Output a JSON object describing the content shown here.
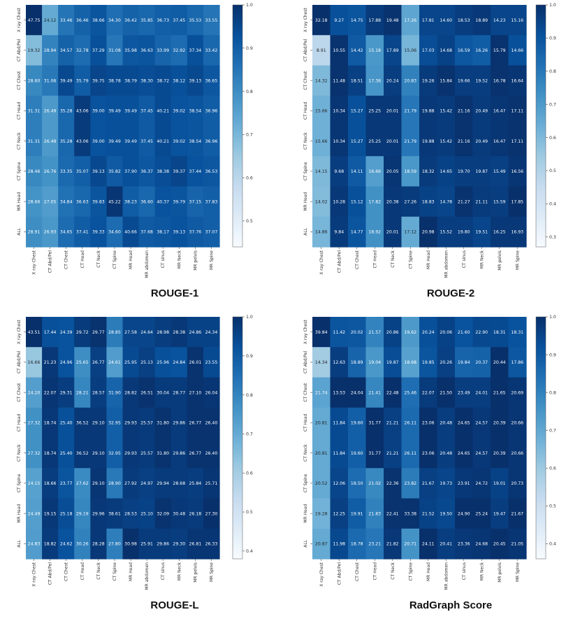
{
  "rows": [
    "X ray Chest",
    "CT Abd/Pel",
    "CT Chest",
    "CT Head",
    "CT Neck",
    "CT Spine",
    "MR Head",
    "ALL"
  ],
  "cols": [
    "X ray Chest",
    "CT Abd/Pel",
    "CT Chest",
    "CT Head",
    "CT Neck",
    "CT Spine",
    "MR Head",
    "MR abdomen",
    "CT sinus",
    "MR Neck",
    "MR pelvis",
    "MR Spine"
  ],
  "colormap": {
    "name": "Blues",
    "stops": [
      "#f7fbff",
      "#deebf7",
      "#c6dbef",
      "#9ecae1",
      "#6baed6",
      "#4292c6",
      "#2171b5",
      "#08519c",
      "#08306b"
    ]
  },
  "chart_data": [
    {
      "type": "heatmap",
      "title": "ROUGE-1",
      "colorbar": {
        "ticks": [
          1.0,
          0.9,
          0.8,
          0.7,
          0.6,
          0.5
        ],
        "range": [
          0.44,
          1.0
        ]
      },
      "values": [
        [
          47.75,
          24.12,
          33.46,
          36.46,
          38.66,
          34.3,
          36.42,
          35.85,
          36.73,
          37.45,
          35.53,
          33.55
        ],
        [
          19.32,
          28.94,
          34.57,
          32.78,
          37.29,
          31.08,
          35.98,
          36.63,
          33.99,
          32.92,
          37.34,
          33.42
        ],
        [
          28.6,
          31.06,
          39.49,
          35.79,
          39.75,
          38.78,
          38.79,
          38.3,
          38.72,
          38.12,
          39.13,
          36.65
        ],
        [
          31.31,
          26.49,
          35.28,
          43.06,
          39.0,
          39.49,
          39.49,
          37.45,
          40.21,
          39.02,
          38.54,
          36.96
        ],
        [
          31.31,
          26.49,
          35.28,
          43.06,
          39.0,
          39.49,
          39.49,
          37.45,
          40.21,
          39.02,
          38.54,
          36.96
        ],
        [
          28.46,
          26.76,
          33.35,
          35.07,
          39.13,
          35.82,
          37.9,
          36.37,
          38.38,
          39.37,
          37.44,
          36.53
        ],
        [
          28.66,
          27.05,
          34.84,
          36.63,
          39.83,
          45.22,
          38.23,
          36.6,
          40.37,
          39.79,
          37.15,
          37.83
        ],
        [
          28.91,
          26.93,
          34.65,
          37.41,
          39.33,
          34.6,
          40.66,
          37.68,
          38.17,
          39.13,
          37.76,
          37.07
        ]
      ],
      "fractions": [
        [
          1.0,
          0.52,
          0.74,
          0.81,
          0.86,
          0.76,
          0.81,
          0.79,
          0.82,
          0.83,
          0.79,
          0.74
        ],
        [
          0.44,
          0.68,
          0.81,
          0.77,
          0.88,
          0.73,
          0.85,
          0.86,
          0.8,
          0.77,
          0.88,
          0.79
        ],
        [
          0.66,
          0.72,
          0.91,
          0.83,
          0.92,
          0.9,
          0.9,
          0.89,
          0.9,
          0.88,
          0.91,
          0.85
        ],
        [
          0.7,
          0.59,
          0.79,
          0.96,
          0.87,
          0.88,
          0.88,
          0.84,
          0.9,
          0.87,
          0.86,
          0.83
        ],
        [
          0.7,
          0.59,
          0.79,
          0.96,
          0.87,
          0.88,
          0.88,
          0.84,
          0.9,
          0.87,
          0.86,
          0.83
        ],
        [
          0.66,
          0.62,
          0.78,
          0.82,
          0.91,
          0.84,
          0.88,
          0.85,
          0.89,
          0.92,
          0.87,
          0.85
        ],
        [
          0.62,
          0.58,
          0.75,
          0.79,
          0.86,
          0.98,
          0.83,
          0.79,
          0.87,
          0.86,
          0.8,
          0.82
        ],
        [
          0.64,
          0.6,
          0.77,
          0.83,
          0.87,
          0.77,
          0.9,
          0.84,
          0.85,
          0.87,
          0.84,
          0.82
        ]
      ]
    },
    {
      "type": "heatmap",
      "title": "ROUGE-2",
      "colorbar": {
        "ticks": [
          1.0,
          0.9,
          0.8,
          0.7,
          0.6,
          0.5,
          0.4,
          0.3
        ],
        "range": [
          0.27,
          1.0
        ]
      },
      "values": [
        [
          32.18,
          9.27,
          14.75,
          17.88,
          19.48,
          17.26,
          17.81,
          14.6,
          18.53,
          18.89,
          14.23,
          15.16
        ],
        [
          8.91,
          10.55,
          14.42,
          15.18,
          17.89,
          15.06,
          17.03,
          14.68,
          16.59,
          16.26,
          15.79,
          14.66
        ],
        [
          14.32,
          11.48,
          18.51,
          17.36,
          20.24,
          20.83,
          19.26,
          15.84,
          19.66,
          19.52,
          16.78,
          16.64
        ],
        [
          15.66,
          10.34,
          15.27,
          25.25,
          20.01,
          21.79,
          19.88,
          15.42,
          21.16,
          20.49,
          16.47,
          17.11
        ],
        [
          15.66,
          10.34,
          15.27,
          25.25,
          20.01,
          21.79,
          19.88,
          15.42,
          21.16,
          20.49,
          16.47,
          17.11
        ],
        [
          14.15,
          9.68,
          14.11,
          16.66,
          20.05,
          18.59,
          18.32,
          14.65,
          19.7,
          19.87,
          15.49,
          16.56
        ],
        [
          14.02,
          10.28,
          15.12,
          17.82,
          20.38,
          27.26,
          18.83,
          14.78,
          21.27,
          21.11,
          15.59,
          17.85
        ],
        [
          14.86,
          9.84,
          14.77,
          18.92,
          20.01,
          17.12,
          20.98,
          15.52,
          19.8,
          19.51,
          16.25,
          16.93
        ]
      ],
      "fractions": [
        [
          1.0,
          0.88,
          0.86,
          0.96,
          0.99,
          0.54,
          0.92,
          0.92,
          0.95,
          0.97,
          0.92,
          0.92
        ],
        [
          0.28,
          0.99,
          0.84,
          0.6,
          0.92,
          0.47,
          0.89,
          0.93,
          0.85,
          0.83,
          0.99,
          0.88
        ],
        [
          0.45,
          0.99,
          0.94,
          0.61,
          0.95,
          0.69,
          0.96,
          0.99,
          0.95,
          0.95,
          0.99,
          0.98
        ],
        [
          0.49,
          0.98,
          0.88,
          0.97,
          0.97,
          0.73,
          0.97,
          0.96,
          0.99,
          0.96,
          0.98,
          0.99
        ],
        [
          0.49,
          0.98,
          0.88,
          0.97,
          0.97,
          0.73,
          0.97,
          0.96,
          0.99,
          0.96,
          0.98,
          0.99
        ],
        [
          0.45,
          0.95,
          0.84,
          0.57,
          0.98,
          0.6,
          0.96,
          0.93,
          0.95,
          0.95,
          0.94,
          0.98
        ],
        [
          0.44,
          0.97,
          0.88,
          0.63,
          0.97,
          0.96,
          0.93,
          0.92,
          0.99,
          0.96,
          0.95,
          1.0
        ],
        [
          0.47,
          0.96,
          0.86,
          0.63,
          0.97,
          0.52,
          1.0,
          0.95,
          0.95,
          0.92,
          0.97,
          0.97
        ]
      ]
    },
    {
      "type": "heatmap",
      "title": "ROUGE-L",
      "colorbar": {
        "ticks": [
          1.0,
          0.9,
          0.8,
          0.7,
          0.6,
          0.5,
          0.4
        ],
        "range": [
          0.38,
          1.0
        ]
      },
      "values": [
        [
          43.51,
          17.44,
          24.39,
          29.72,
          29.77,
          28.85,
          27.58,
          24.64,
          28.98,
          28.38,
          24.86,
          24.34
        ],
        [
          16.66,
          21.23,
          24.96,
          25.65,
          26.77,
          24.61,
          25.95,
          25.13,
          25.96,
          24.84,
          26.01,
          23.55
        ],
        [
          24.2,
          22.07,
          29.31,
          28.21,
          28.57,
          31.9,
          28.82,
          26.51,
          30.04,
          28.77,
          27.1,
          26.04
        ],
        [
          27.32,
          18.74,
          25.4,
          36.52,
          29.1,
          32.95,
          29.93,
          25.57,
          31.8,
          29.86,
          26.77,
          26.4
        ],
        [
          27.32,
          18.74,
          25.4,
          36.52,
          29.1,
          32.95,
          29.93,
          25.57,
          31.8,
          29.86,
          26.77,
          26.4
        ],
        [
          24.15,
          18.66,
          23.77,
          27.62,
          29.1,
          28.9,
          27.92,
          24.97,
          29.94,
          28.68,
          25.84,
          25.71
        ],
        [
          24.49,
          19.15,
          25.18,
          29.19,
          29.96,
          38.61,
          28.53,
          25.1,
          32.09,
          30.48,
          26.18,
          27.3
        ],
        [
          24.83,
          18.82,
          24.62,
          30.26,
          28.28,
          27.8,
          30.98,
          25.91,
          29.86,
          29.3,
          26.81,
          26.33
        ]
      ],
      "fractions": [
        [
          1.0,
          0.88,
          0.87,
          0.96,
          0.99,
          0.71,
          0.92,
          0.92,
          0.95,
          0.97,
          0.93,
          0.93
        ],
        [
          0.39,
          0.97,
          0.87,
          0.64,
          0.94,
          0.58,
          0.9,
          0.94,
          0.88,
          0.87,
          0.99,
          0.9
        ],
        [
          0.57,
          0.98,
          0.95,
          0.67,
          0.95,
          0.8,
          0.97,
          0.99,
          0.96,
          0.96,
          0.99,
          0.98
        ],
        [
          0.63,
          0.97,
          0.88,
          0.97,
          0.97,
          0.82,
          0.97,
          0.96,
          0.99,
          0.96,
          0.99,
          0.99
        ],
        [
          0.63,
          0.97,
          0.88,
          0.97,
          0.97,
          0.82,
          0.97,
          0.96,
          0.99,
          0.96,
          0.99,
          0.99
        ],
        [
          0.56,
          0.95,
          0.86,
          0.65,
          0.98,
          0.72,
          0.96,
          0.94,
          0.96,
          0.96,
          0.95,
          0.98
        ],
        [
          0.57,
          0.97,
          0.89,
          0.67,
          0.97,
          0.96,
          0.94,
          0.93,
          0.99,
          0.97,
          0.96,
          1.0
        ],
        [
          0.58,
          0.96,
          0.87,
          0.69,
          0.97,
          0.7,
          1.0,
          0.96,
          0.96,
          0.95,
          0.98,
          0.98
        ]
      ]
    },
    {
      "type": "heatmap",
      "title": "RadGraph Score",
      "colorbar": {
        "ticks": [
          1.0,
          0.9,
          0.8,
          0.7,
          0.6,
          0.5,
          0.4
        ],
        "range": [
          0.36,
          1.0
        ]
      },
      "values": [
        [
          39.84,
          11.42,
          20.02,
          21.57,
          20.86,
          19.62,
          20.24,
          20.06,
          21.6,
          22.9,
          18.31,
          18.31
        ],
        [
          14.34,
          12.63,
          18.89,
          19.04,
          19.87,
          18.68,
          19.85,
          20.26,
          19.84,
          20.37,
          20.44,
          17.86
        ],
        [
          21.74,
          13.53,
          24.04,
          21.41,
          22.48,
          25.46,
          22.07,
          21.5,
          23.49,
          24.01,
          21.65,
          20.69
        ],
        [
          20.81,
          11.84,
          19.6,
          31.77,
          21.21,
          26.11,
          23.06,
          20.48,
          24.65,
          24.57,
          20.39,
          20.66
        ],
        [
          20.81,
          11.84,
          19.6,
          31.77,
          21.21,
          26.11,
          23.06,
          20.48,
          24.65,
          24.57,
          20.39,
          20.66
        ],
        [
          20.52,
          12.06,
          18.5,
          21.02,
          22.36,
          23.82,
          21.67,
          19.73,
          23.91,
          24.72,
          19.01,
          20.73
        ],
        [
          19.28,
          12.25,
          19.91,
          21.83,
          22.41,
          33.38,
          21.52,
          19.5,
          24.9,
          25.24,
          19.47,
          21.67
        ],
        [
          20.87,
          11.98,
          18.78,
          23.21,
          21.82,
          20.71,
          24.11,
          20.41,
          23.36,
          24.68,
          20.45,
          21.05
        ]
      ],
      "fractions": [
        [
          1.0,
          0.86,
          0.85,
          0.68,
          0.93,
          0.59,
          0.88,
          0.93,
          0.87,
          0.91,
          0.9,
          0.87
        ],
        [
          0.36,
          0.95,
          0.8,
          0.6,
          0.89,
          0.56,
          0.86,
          0.94,
          0.8,
          0.81,
          1.0,
          0.85
        ],
        [
          0.55,
          1.0,
          1.0,
          0.67,
          1.0,
          0.76,
          0.96,
          1.0,
          0.95,
          0.95,
          1.0,
          0.98
        ],
        [
          0.52,
          0.9,
          0.82,
          1.0,
          0.94,
          0.78,
          1.0,
          0.95,
          1.0,
          0.97,
          1.0,
          0.98
        ],
        [
          0.52,
          0.9,
          0.82,
          1.0,
          0.94,
          0.78,
          1.0,
          0.95,
          1.0,
          0.97,
          1.0,
          0.98
        ],
        [
          0.52,
          0.92,
          0.77,
          0.66,
          0.99,
          0.71,
          0.94,
          0.92,
          0.97,
          0.98,
          0.93,
          0.98
        ],
        [
          0.48,
          0.94,
          0.83,
          0.69,
          0.99,
          0.99,
          0.93,
          0.91,
          1.0,
          1.0,
          0.95,
          1.0
        ],
        [
          0.52,
          0.91,
          0.78,
          0.73,
          0.97,
          0.62,
          1.0,
          0.95,
          0.97,
          0.98,
          1.0,
          0.98
        ]
      ]
    }
  ]
}
